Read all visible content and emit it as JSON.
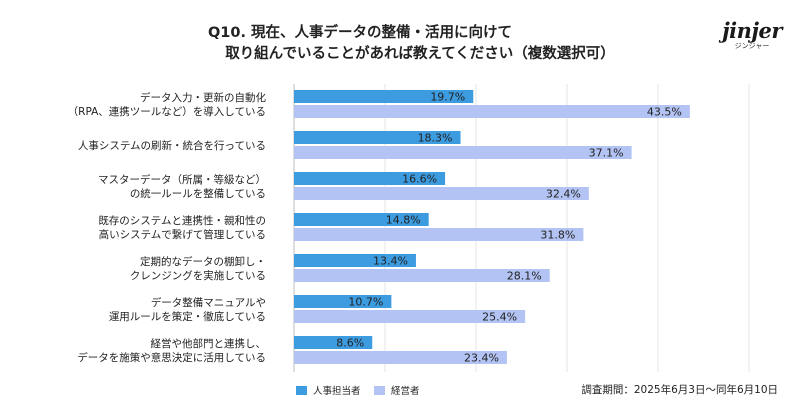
{
  "title": {
    "line1": "Q10. 現在、人事データの整備・活用に向けて",
    "line2": "取り組んでいることがあれば教えてください（複数選択可）"
  },
  "logo": {
    "text": "jinjer",
    "sub": "ジンジャー"
  },
  "colors": {
    "series1": "#3d9be0",
    "series2": "#b3c4f4",
    "grid": "#e6e6e6"
  },
  "note": "調査期間：2025年6月3日〜同年6月10日",
  "chart_data": {
    "type": "bar",
    "orientation": "horizontal",
    "categories": [
      [
        "データ入力・更新の自動化",
        "（RPA、連携ツールなど）を導入している"
      ],
      [
        "人事システムの刷新・統合を行っている"
      ],
      [
        "マスターデータ（所属・等級など）",
        "の統一ルールを整備している"
      ],
      [
        "既存のシステムと連携性・親和性の",
        "高いシステムで繋げて管理している"
      ],
      [
        "定期的なデータの棚卸し・",
        "クレンジングを実施している"
      ],
      [
        "データ整備マニュアルや",
        "運用ルールを策定・徹底している"
      ],
      [
        "経営や他部門と連携し、",
        "データを施策や意思決定に活用している"
      ]
    ],
    "series": [
      {
        "name": "人事担当者",
        "values": [
          19.7,
          18.3,
          16.6,
          14.8,
          13.4,
          10.7,
          8.6
        ]
      },
      {
        "name": "経営者",
        "values": [
          43.5,
          37.1,
          32.4,
          31.8,
          28.1,
          25.4,
          23.4
        ]
      }
    ],
    "value_suffix": "%",
    "xlim": [
      0,
      50
    ],
    "grid": true,
    "legend_position": "bottom-left"
  }
}
